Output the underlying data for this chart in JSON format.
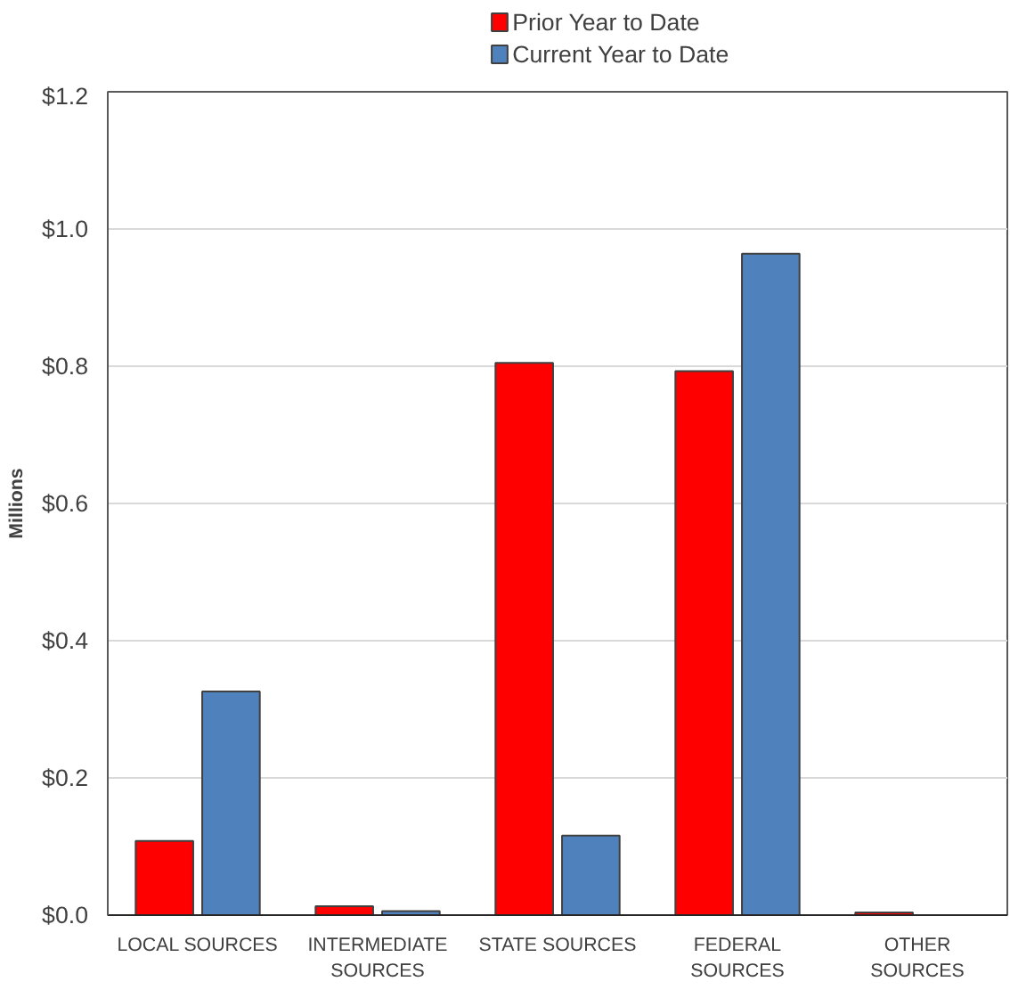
{
  "chart_data": {
    "type": "bar",
    "ylabel": "Millions",
    "categories": [
      "LOCAL SOURCES",
      "INTERMEDIATE\nSOURCES",
      "STATE SOURCES",
      "FEDERAL\nSOURCES",
      "OTHER\nSOURCES"
    ],
    "series": [
      {
        "name": "Prior Year to Date",
        "color": "#ff0000",
        "values": [
          0.108,
          0.013,
          0.805,
          0.793,
          0.004
        ]
      },
      {
        "name": "Current Year to Date",
        "color": "#4f81bd",
        "values": [
          0.326,
          0.006,
          0.116,
          0.964,
          0
        ]
      }
    ],
    "ylim": [
      0,
      1.2
    ],
    "yticks": [
      {
        "value": 0,
        "label": "$0.0"
      },
      {
        "value": 0.2,
        "label": "$0.2"
      },
      {
        "value": 0.4,
        "label": "$0.4"
      },
      {
        "value": 0.6,
        "label": "$0.6"
      },
      {
        "value": 0.8,
        "label": "$0.8"
      },
      {
        "value": 1.0,
        "label": "$1.0"
      },
      {
        "value": 1.2,
        "label": "$1.2"
      }
    ],
    "grid": "y",
    "legend": "top"
  }
}
